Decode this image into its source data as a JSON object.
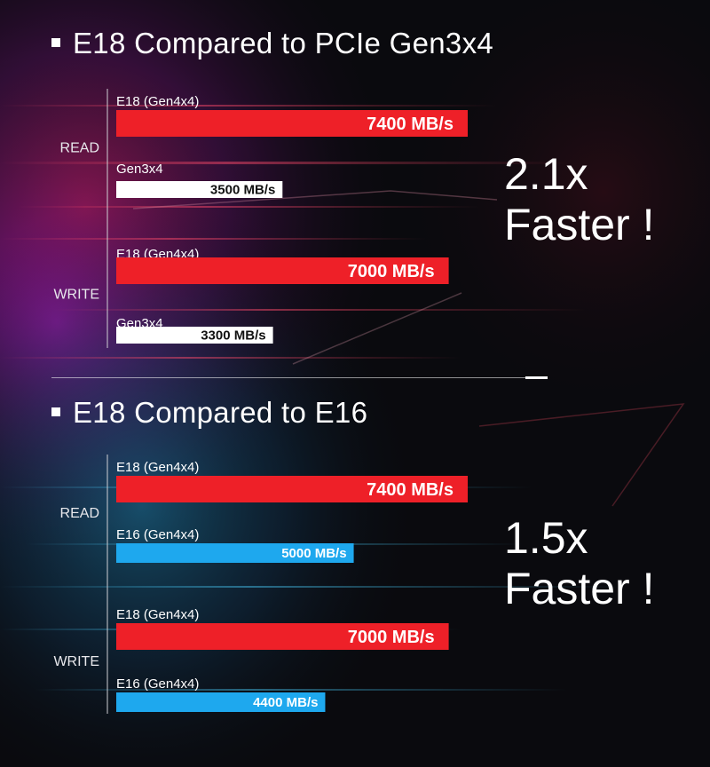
{
  "sections": [
    {
      "title": "E18 Compared to PCIe Gen3x4",
      "faster_value": "2.1x",
      "faster_word": "Faster !"
    },
    {
      "title": "E18 Compared to E16",
      "faster_value": "1.5x",
      "faster_word": "Faster !"
    }
  ],
  "colors": {
    "e18": "#ee2028",
    "gen3": "#ffffff",
    "e16": "#1ea8ee"
  },
  "chart_data": [
    {
      "type": "bar",
      "orientation": "horizontal",
      "groups": [
        "READ",
        "WRITE"
      ],
      "series": [
        {
          "name": "E18 (Gen4x4)",
          "values": [
            7400,
            7000
          ],
          "color": "#ee2028"
        },
        {
          "name": "Gen3x4",
          "values": [
            3500,
            3300
          ],
          "color": "#ffffff"
        }
      ],
      "value_labels": [
        "7400 MB/s",
        "3500 MB/s",
        "7000 MB/s",
        "3300 MB/s"
      ],
      "unit": "MB/s"
    },
    {
      "type": "bar",
      "orientation": "horizontal",
      "groups": [
        "READ",
        "WRITE"
      ],
      "series": [
        {
          "name": "E18 (Gen4x4)",
          "values": [
            7400,
            7000
          ],
          "color": "#ee2028"
        },
        {
          "name": "E16 (Gen4x4)",
          "values": [
            5000,
            4400
          ],
          "color": "#1ea8ee"
        }
      ],
      "value_labels": [
        "7400 MB/s",
        "5000 MB/s",
        "7000 MB/s",
        "4400 MB/s"
      ],
      "unit": "MB/s"
    }
  ]
}
